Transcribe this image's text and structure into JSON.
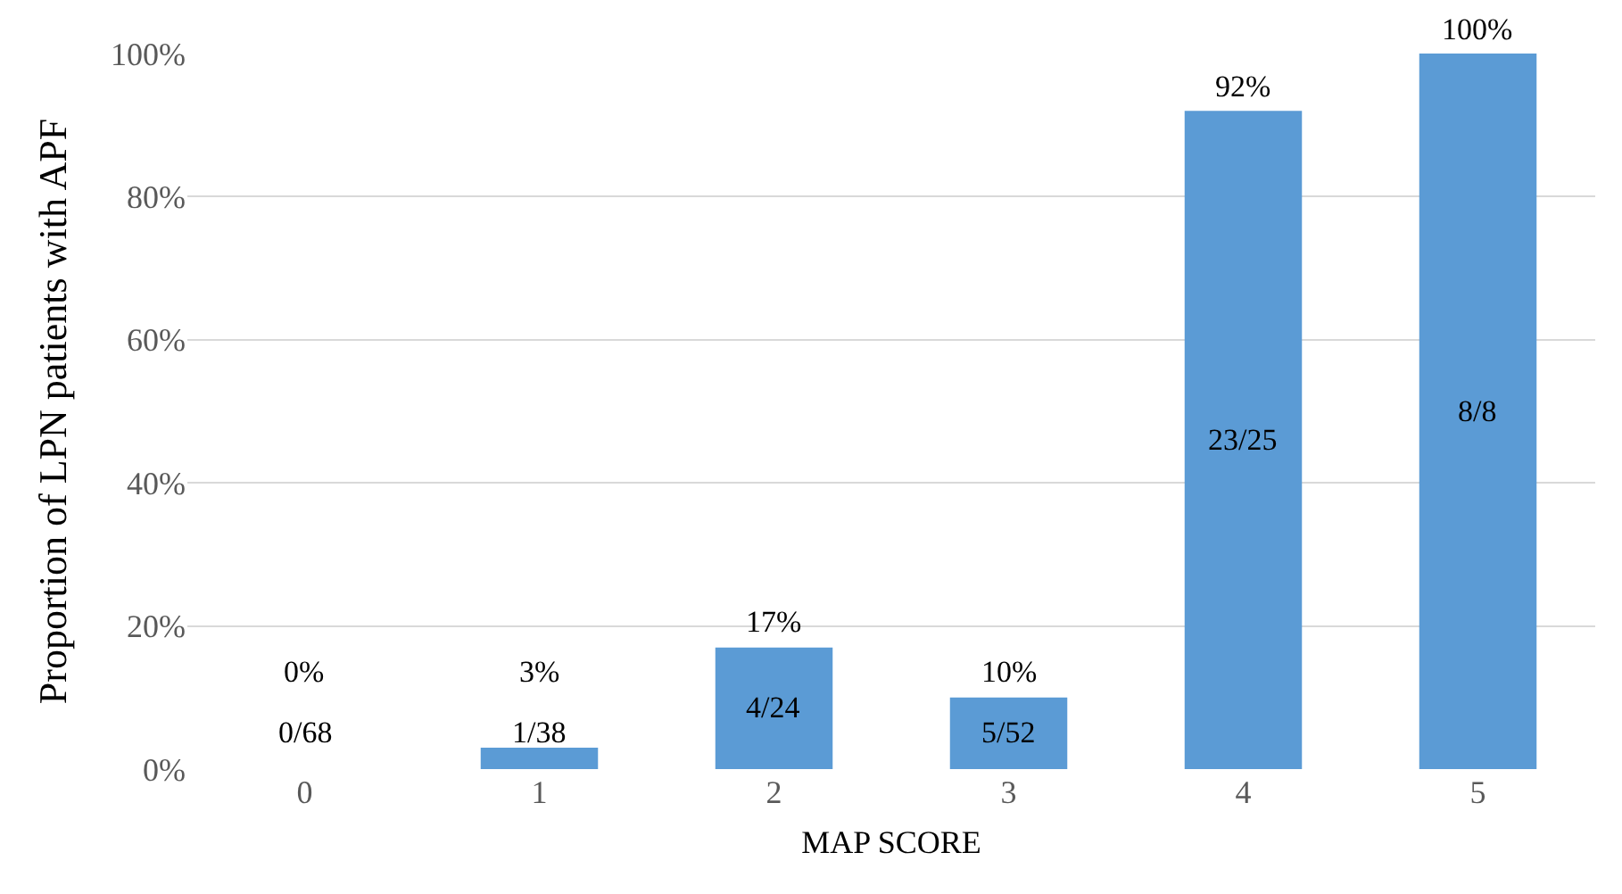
{
  "chart_data": {
    "type": "bar",
    "xlabel": "MAP SCORE",
    "ylabel": "Proportion of LPN patients with APF",
    "categories": [
      "0",
      "1",
      "2",
      "3",
      "4",
      "5"
    ],
    "values": [
      0,
      3,
      17,
      10,
      92,
      100
    ],
    "color": "#5b9bd5",
    "value_labels": [
      "0%",
      "3%",
      "17%",
      "10%",
      "92%",
      "100%"
    ],
    "ylim": [
      0,
      100
    ],
    "yticks": [
      {
        "value": 0,
        "label": "0%"
      },
      {
        "value": 20,
        "label": "20%"
      },
      {
        "value": 40,
        "label": "40%"
      },
      {
        "value": 60,
        "label": "60%"
      },
      {
        "value": 80,
        "label": "80%"
      },
      {
        "value": 100,
        "label": "100%"
      }
    ],
    "grid": "y",
    "annotations": [
      "0/68",
      "1/38",
      "4/24",
      "5/52",
      "23/25",
      "8/8"
    ]
  }
}
